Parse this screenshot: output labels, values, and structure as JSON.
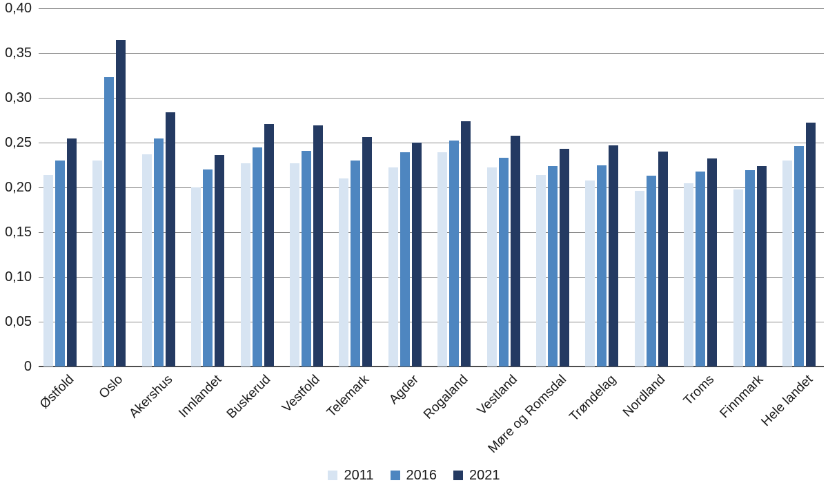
{
  "chart_data": {
    "type": "bar",
    "title": "",
    "xlabel": "",
    "ylabel": "",
    "categories": [
      "Østfold",
      "Oslo",
      "Akershus",
      "Innlandet",
      "Buskerud",
      "Vestfold",
      "Telemark",
      "Agder",
      "Rogaland",
      "Vestland",
      "Møre og Romsdal",
      "Trøndelag",
      "Nordland",
      "Troms",
      "Finnmark",
      "Hele landet"
    ],
    "series": [
      {
        "name": "2011",
        "color": "#d7e4f2",
        "values": [
          0.214,
          0.23,
          0.237,
          0.2,
          0.227,
          0.227,
          0.21,
          0.222,
          0.239,
          0.222,
          0.214,
          0.208,
          0.196,
          0.205,
          0.198,
          0.23
        ]
      },
      {
        "name": "2016",
        "color": "#4e86c0",
        "values": [
          0.23,
          0.323,
          0.255,
          0.22,
          0.245,
          0.241,
          0.23,
          0.239,
          0.252,
          0.233,
          0.224,
          0.225,
          0.213,
          0.218,
          0.219,
          0.246
        ]
      },
      {
        "name": "2021",
        "color": "#243a62",
        "values": [
          0.255,
          0.365,
          0.284,
          0.236,
          0.271,
          0.269,
          0.256,
          0.25,
          0.274,
          0.258,
          0.243,
          0.247,
          0.24,
          0.232,
          0.224,
          0.272
        ]
      }
    ],
    "ylim": [
      0,
      0.4
    ],
    "ytick_labels": [
      "0,40",
      "0,35",
      "0,30",
      "0,25",
      "0,20",
      "0,15",
      "0,10",
      "0,05",
      "0"
    ],
    "ytick_values": [
      0.4,
      0.35,
      0.3,
      0.25,
      0.2,
      0.15,
      0.1,
      0.05,
      0
    ],
    "decimal_separator": ",",
    "grid": "horizontal",
    "legend_position": "bottom-center",
    "x_label_rotation_deg": -45
  },
  "colors": {
    "background": "#ffffff",
    "gridline": "#8c8c8c",
    "axis_line": "#4d4d4d",
    "text": "#1a1a1a"
  }
}
